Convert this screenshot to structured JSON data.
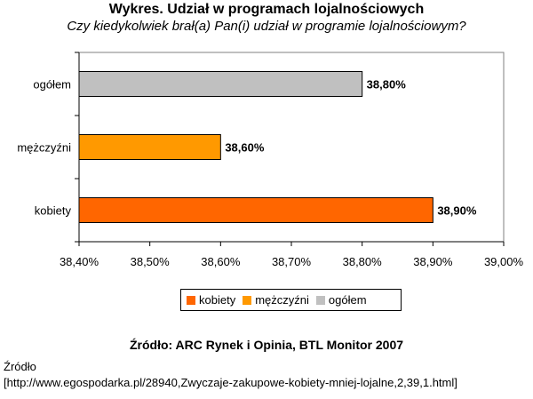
{
  "chart_data": {
    "type": "bar",
    "orientation": "horizontal",
    "title": "Wykres. Udział w programach lojalnościowych",
    "subtitle": "Czy kiedykolwiek brał(a) Pan(i) udział w programie lojalnościowym?",
    "categories": [
      "ogółem",
      "mężczyźni",
      "kobiety"
    ],
    "values": [
      38.8,
      38.6,
      38.9
    ],
    "data_labels": [
      "38,80%",
      "38,60%",
      "38,90%"
    ],
    "colors": [
      "#c0c0c0",
      "#ff9900",
      "#ff6600"
    ],
    "xlim": [
      38.4,
      39.0
    ],
    "x_ticks": [
      38.4,
      38.5,
      38.6,
      38.7,
      38.8,
      38.9,
      39.0
    ],
    "x_tick_labels": [
      "38,40%",
      "38,50%",
      "38,60%",
      "38,70%",
      "38,80%",
      "38,90%",
      "39,00%"
    ],
    "grid": false,
    "legend": {
      "placement": "bottom",
      "entries": [
        {
          "label": "kobiety",
          "color": "#ff6600"
        },
        {
          "label": "mężczyźni",
          "color": "#ff9900"
        },
        {
          "label": "ogółem",
          "color": "#c0c0c0"
        }
      ]
    }
  },
  "source": {
    "bold_line": "Źródło: ARC Rynek i Opinia, BTL Monitor 2007",
    "label": "Źródło",
    "url_line": "[http://www.egospodarka.pl/28940,Zwyczaje-zakupowe-kobiety-mniej-lojalne,2,39,1.html]"
  }
}
